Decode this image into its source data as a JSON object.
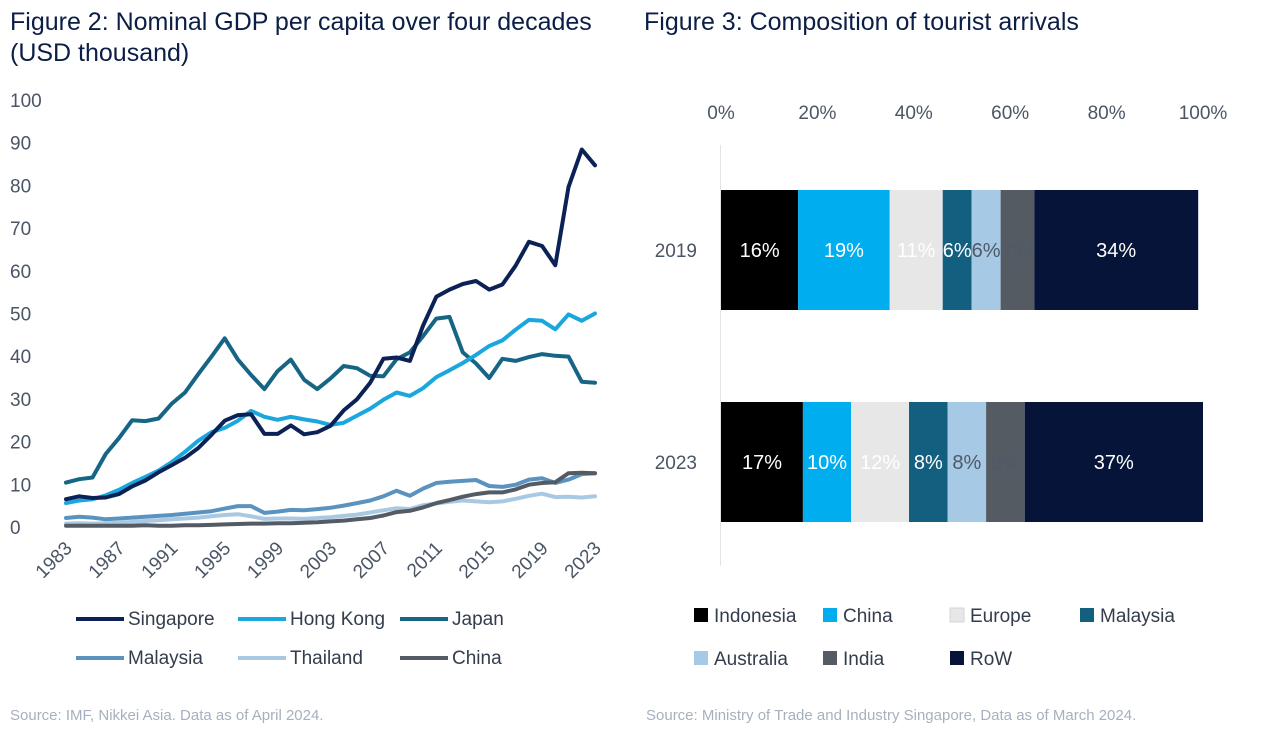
{
  "left": {
    "title": "Figure 2: Nominal GDP per capita over four decades (USD thousand)",
    "source": "Source: IMF, Nikkei Asia. Data as of April 2024."
  },
  "right": {
    "title": "Figure 3: Composition of tourist arrivals",
    "source": "Source: Ministry of Trade and Industry Singapore, Data as of March 2024."
  },
  "colors": {
    "Singapore": "#0c2256",
    "Hong Kong": "#19a7de",
    "Japan": "#176585",
    "Malaysia": "#5a93c0",
    "Thailand": "#a9c9e3",
    "China": "#545b64",
    "Indonesia": "#000000",
    "China_t": "#00aeef",
    "Europe": "#e7e7e8",
    "Malaysia_t": "#135f80",
    "Australia": "#a6c9e5",
    "India": "#545b63",
    "RoW": "#06143a"
  },
  "chart_data": [
    {
      "type": "line",
      "title": "Figure 2: Nominal GDP per capita over four decades (USD thousand)",
      "xlabel": "",
      "ylabel": "",
      "ylim": [
        0,
        100
      ],
      "yticks": [
        "0",
        "10",
        "20",
        "30",
        "40",
        "50",
        "60",
        "70",
        "80",
        "90",
        "100"
      ],
      "xticks": [
        "1983",
        "1987",
        "1991",
        "1995",
        "1999",
        "2003",
        "2007",
        "2011",
        "2015",
        "2019",
        "2023"
      ],
      "x": [
        1983,
        1984,
        1985,
        1986,
        1987,
        1988,
        1989,
        1990,
        1991,
        1992,
        1993,
        1994,
        1995,
        1996,
        1997,
        1998,
        1999,
        2000,
        2001,
        2002,
        2003,
        2004,
        2005,
        2006,
        2007,
        2008,
        2009,
        2010,
        2011,
        2012,
        2013,
        2014,
        2015,
        2016,
        2017,
        2018,
        2019,
        2020,
        2021,
        2022,
        2023
      ],
      "legend_position": "bottom",
      "series": [
        {
          "name": "Singapore",
          "values": [
            6.5,
            7.2,
            6.8,
            6.9,
            7.7,
            9.5,
            10.9,
            12.8,
            14.5,
            16.2,
            18.5,
            21.6,
            24.9,
            26.2,
            26.4,
            21.8,
            21.8,
            23.8,
            21.7,
            22.2,
            23.7,
            27.3,
            29.9,
            33.8,
            39.4,
            39.7,
            38.9,
            47.2,
            53.9,
            55.6,
            56.9,
            57.6,
            55.6,
            56.8,
            61.2,
            66.8,
            65.8,
            61.3,
            79.6,
            88.4,
            84.7
          ]
        },
        {
          "name": "Hong Kong",
          "values": [
            5.6,
            6.2,
            6.5,
            7.4,
            8.7,
            10.3,
            11.7,
            13.2,
            15.2,
            17.6,
            20.2,
            22.2,
            23.2,
            24.9,
            27.2,
            25.8,
            25.1,
            25.8,
            25.2,
            24.7,
            23.9,
            24.4,
            26.1,
            27.7,
            29.8,
            31.5,
            30.7,
            32.5,
            35.1,
            36.7,
            38.4,
            40.3,
            42.4,
            43.7,
            46.2,
            48.5,
            48.3,
            46.3,
            49.8,
            48.3,
            50.0
          ]
        },
        {
          "name": "Japan",
          "values": [
            10.4,
            11.2,
            11.6,
            17.1,
            20.8,
            25.0,
            24.8,
            25.4,
            28.9,
            31.5,
            35.8,
            39.9,
            44.2,
            39.2,
            35.6,
            32.3,
            36.5,
            39.2,
            34.5,
            32.3,
            34.8,
            37.7,
            37.2,
            35.4,
            35.3,
            39.3,
            40.9,
            44.7,
            48.8,
            49.2,
            40.9,
            38.3,
            34.9,
            39.4,
            38.9,
            39.8,
            40.5,
            40.1,
            39.9,
            34.0,
            33.8
          ]
        },
        {
          "name": "Malaysia",
          "values": [
            2.1,
            2.4,
            2.2,
            1.8,
            2.0,
            2.2,
            2.4,
            2.6,
            2.8,
            3.1,
            3.4,
            3.7,
            4.3,
            4.9,
            4.9,
            3.3,
            3.6,
            4.0,
            3.9,
            4.2,
            4.5,
            5.0,
            5.6,
            6.2,
            7.2,
            8.5,
            7.3,
            9.0,
            10.3,
            10.6,
            10.8,
            11.0,
            9.6,
            9.4,
            9.9,
            11.1,
            11.4,
            10.3,
            11.1,
            12.4,
            12.6
          ]
        },
        {
          "name": "Thailand",
          "values": [
            0.8,
            0.9,
            0.8,
            0.9,
            1.0,
            1.2,
            1.4,
            1.6,
            1.8,
            2.0,
            2.2,
            2.5,
            2.8,
            3.0,
            2.5,
            1.9,
            2.0,
            2.0,
            1.9,
            2.1,
            2.3,
            2.6,
            2.9,
            3.4,
            3.9,
            4.4,
            4.2,
            5.1,
            5.5,
            5.9,
            6.2,
            6.0,
            5.8,
            6.0,
            6.6,
            7.3,
            7.8,
            7.0,
            7.1,
            6.9,
            7.2
          ]
        },
        {
          "name": "China",
          "values": [
            0.3,
            0.3,
            0.3,
            0.3,
            0.3,
            0.3,
            0.4,
            0.3,
            0.3,
            0.4,
            0.4,
            0.5,
            0.6,
            0.7,
            0.8,
            0.8,
            0.9,
            0.9,
            1.0,
            1.1,
            1.3,
            1.5,
            1.8,
            2.1,
            2.7,
            3.5,
            3.8,
            4.6,
            5.6,
            6.3,
            7.1,
            7.7,
            8.1,
            8.1,
            8.8,
            9.9,
            10.3,
            10.5,
            12.6,
            12.7,
            12.6
          ]
        }
      ]
    },
    {
      "type": "bar",
      "orientation": "horizontal-stacked-percent",
      "title": "Figure 3: Composition of tourist arrivals",
      "xlim": [
        0,
        100
      ],
      "xticks": [
        "0%",
        "20%",
        "40%",
        "60%",
        "80%",
        "100%"
      ],
      "categories": [
        "2019",
        "2023"
      ],
      "legend_position": "bottom",
      "series": [
        {
          "name": "Indonesia",
          "values": [
            16,
            17
          ],
          "labels": [
            "16%",
            "17%"
          ]
        },
        {
          "name": "China",
          "values": [
            19,
            10
          ],
          "labels": [
            "19%",
            "10%"
          ]
        },
        {
          "name": "Europe",
          "values": [
            11,
            12
          ],
          "labels": [
            "11%",
            "12%"
          ]
        },
        {
          "name": "Malaysia",
          "values": [
            6,
            8
          ],
          "labels": [
            "6%",
            "8%"
          ]
        },
        {
          "name": "Australia",
          "values": [
            6,
            8
          ],
          "labels": [
            "6%",
            "8%"
          ]
        },
        {
          "name": "India",
          "values": [
            7,
            8
          ],
          "labels": [
            "7%",
            "8%"
          ]
        },
        {
          "name": "RoW",
          "values": [
            34,
            37
          ],
          "labels": [
            "34%",
            "37%"
          ]
        }
      ]
    }
  ]
}
